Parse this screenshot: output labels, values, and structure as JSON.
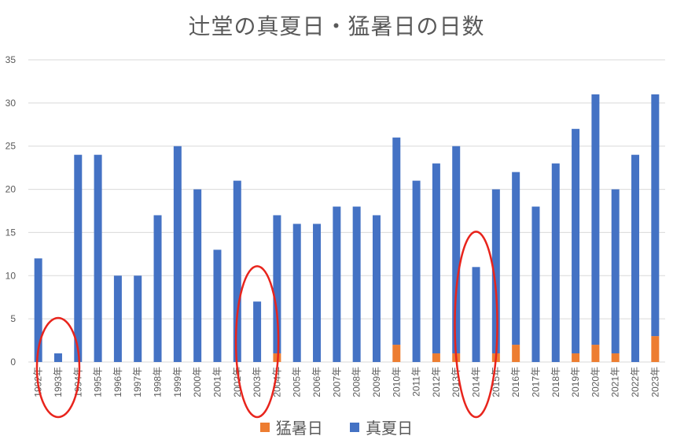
{
  "chart_data": {
    "type": "bar",
    "stacked": true,
    "title": "辻堂の真夏日・猛暑日の日数",
    "categories": [
      "1992年",
      "1993年",
      "1994年",
      "1995年",
      "1996年",
      "1997年",
      "1998年",
      "1999年",
      "2000年",
      "2001年",
      "2002年",
      "2003年",
      "2004年",
      "2005年",
      "2006年",
      "2007年",
      "2008年",
      "2009年",
      "2010年",
      "2011年",
      "2012年",
      "2013年",
      "2014年",
      "2015年",
      "2016年",
      "2017年",
      "2018年",
      "2019年",
      "2020年",
      "2021年",
      "2022年",
      "2023年"
    ],
    "series": [
      {
        "name": "猛暑日",
        "color": "#ED7D31",
        "values": [
          0,
          0,
          0,
          0,
          0,
          0,
          0,
          0,
          0,
          0,
          0,
          0,
          1,
          0,
          0,
          0,
          0,
          0,
          2,
          0,
          1,
          1,
          0,
          1,
          2,
          0,
          0,
          1,
          2,
          1,
          0,
          3
        ]
      },
      {
        "name": "真夏日",
        "color": "#4472C4",
        "values": [
          12,
          1,
          24,
          24,
          10,
          10,
          17,
          25,
          20,
          13,
          21,
          7,
          16,
          16,
          16,
          18,
          18,
          17,
          24,
          21,
          22,
          24,
          11,
          19,
          20,
          18,
          23,
          26,
          29,
          19,
          24,
          28
        ]
      }
    ],
    "ylim": [
      0,
      35
    ],
    "yticks": [
      0,
      5,
      10,
      15,
      20,
      25,
      30,
      35
    ],
    "grid": true,
    "legend_position": "bottom",
    "annotations": [
      {
        "type": "circle",
        "color": "#E8241C",
        "category": "1993年"
      },
      {
        "type": "circle",
        "color": "#E8241C",
        "category": "2003年"
      },
      {
        "type": "circle",
        "color": "#E8241C",
        "category": "2014年"
      }
    ]
  }
}
